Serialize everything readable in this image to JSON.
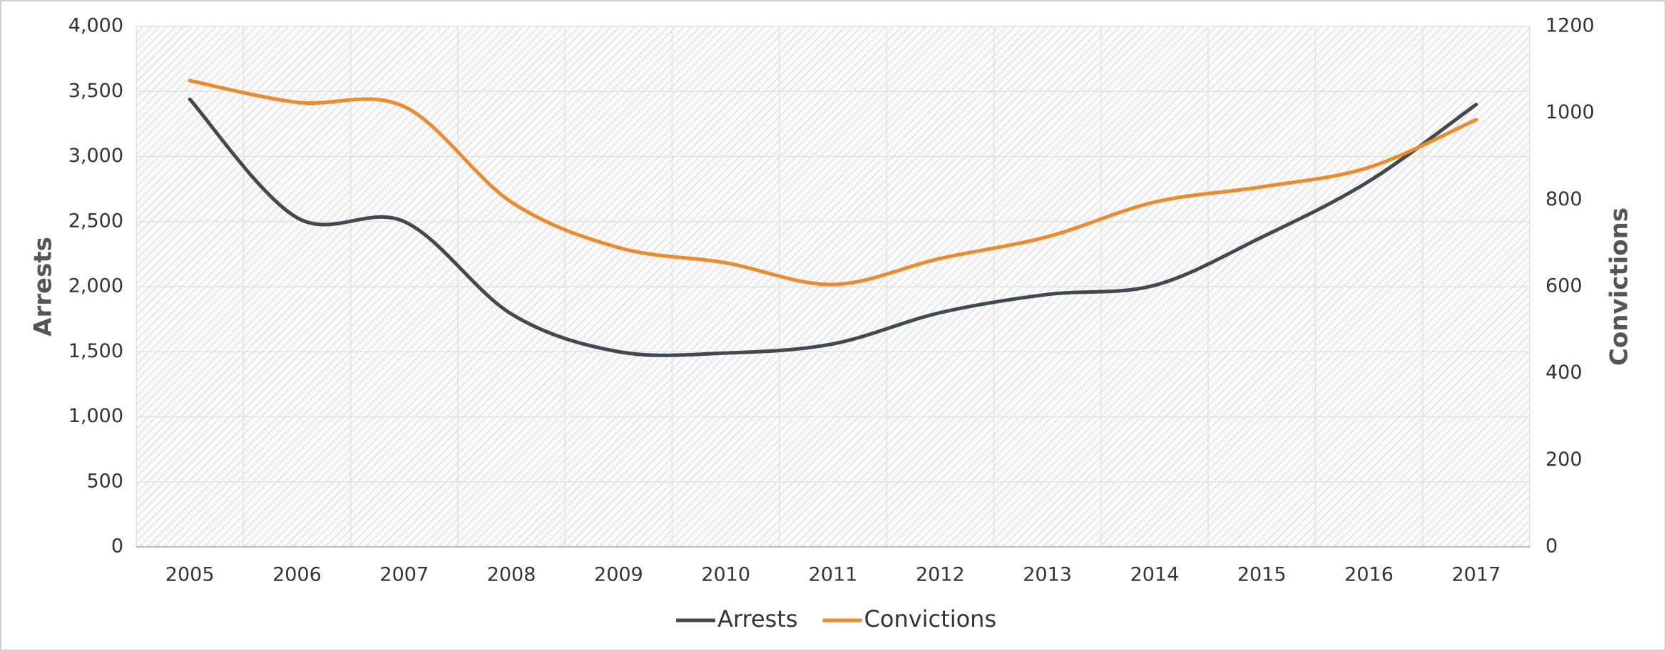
{
  "chart_data": {
    "type": "line",
    "categories": [
      "2005",
      "2006",
      "2007",
      "2008",
      "2009",
      "2010",
      "2011",
      "2012",
      "2013",
      "2014",
      "2015",
      "2016",
      "2017"
    ],
    "series": [
      {
        "name": "Arrests",
        "color": "#3f4a50",
        "values": [
          3440,
          2530,
          2500,
          1790,
          1500,
          1490,
          1560,
          1800,
          1940,
          2010,
          2380,
          2810,
          3400
        ]
      },
      {
        "name": "Convictions",
        "color": "#ee8a2a",
        "axis": "y2",
        "values": [
          1075,
          1025,
          1015,
          795,
          690,
          655,
          605,
          665,
          715,
          795,
          830,
          875,
          985
        ]
      }
    ],
    "y_label": "Arrests",
    "y2_label": "Convictions",
    "ylim": [
      0,
      4000
    ],
    "yticks": [
      0,
      500,
      {
        "value": 1000,
        "label": "1,000"
      },
      {
        "value": 1500,
        "label": "1,500"
      },
      {
        "value": 2000,
        "label": "2,000"
      },
      {
        "value": 2500,
        "label": "2,500"
      },
      {
        "value": 3000,
        "label": "3,000"
      },
      {
        "value": 3500,
        "label": "3,500"
      },
      {
        "value": 4000,
        "label": "4,000"
      }
    ],
    "y2lim": [
      0,
      1200
    ],
    "y2ticks": [
      0,
      200,
      400,
      600,
      800,
      1000,
      1200
    ],
    "grid": true,
    "smooth": true,
    "legend": "bottom"
  }
}
